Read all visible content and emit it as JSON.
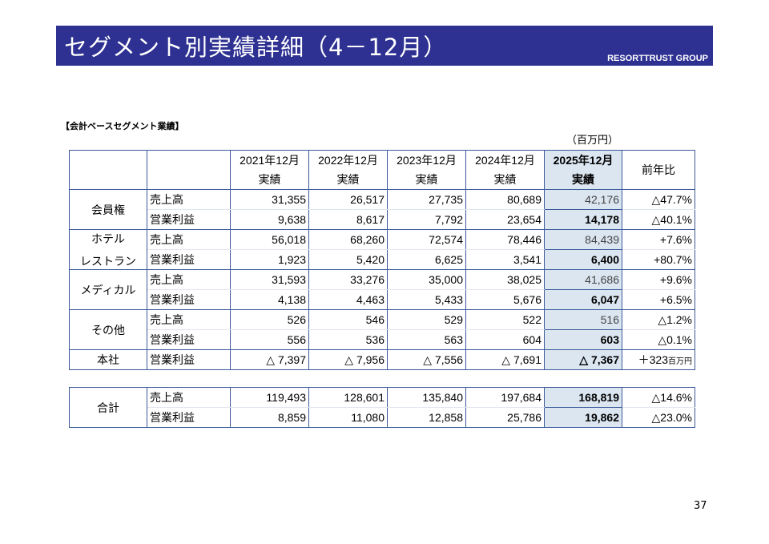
{
  "title": "セグメント別実績詳細（4－12月）",
  "brand": "RESORTTRUST GROUP",
  "section_title": "【会計ベースセグメント業績】",
  "unit": "（百万円）",
  "columns": [
    {
      "year": "2021年12月",
      "sub": "実績"
    },
    {
      "year": "2022年12月",
      "sub": "実績"
    },
    {
      "year": "2023年12月",
      "sub": "実績"
    },
    {
      "year": "2024年12月",
      "sub": "実績"
    },
    {
      "year": "2025年12月",
      "sub": "実績"
    }
  ],
  "yoy_header": "前年比",
  "segments": [
    {
      "name": "会員権",
      "rows": [
        {
          "label": "売上高",
          "values": [
            "31,355",
            "26,517",
            "27,735",
            "80,689",
            "42,176"
          ],
          "yoy": "△47.7%"
        },
        {
          "label": "営業利益",
          "values": [
            "9,638",
            "8,617",
            "7,792",
            "23,654",
            "14,178"
          ],
          "yoy": "△40.1%"
        }
      ]
    },
    {
      "name": "ホテル",
      "name2": "レストラン",
      "rows": [
        {
          "label": "売上高",
          "values": [
            "56,018",
            "68,260",
            "72,574",
            "78,446",
            "84,439"
          ],
          "yoy": "+7.6%"
        },
        {
          "label": "営業利益",
          "values": [
            "1,923",
            "5,420",
            "6,625",
            "3,541",
            "6,400"
          ],
          "yoy": "+80.7%"
        }
      ]
    },
    {
      "name": "メディカル",
      "rows": [
        {
          "label": "売上高",
          "values": [
            "31,593",
            "33,276",
            "35,000",
            "38,025",
            "41,686"
          ],
          "yoy": "+9.6%"
        },
        {
          "label": "営業利益",
          "values": [
            "4,138",
            "4,463",
            "5,433",
            "5,676",
            "6,047"
          ],
          "yoy": "+6.5%"
        }
      ]
    },
    {
      "name": "その他",
      "rows": [
        {
          "label": "売上高",
          "values": [
            "526",
            "546",
            "529",
            "522",
            "516"
          ],
          "yoy": "△1.2%"
        },
        {
          "label": "営業利益",
          "values": [
            "556",
            "536",
            "563",
            "604",
            "603"
          ],
          "yoy": "△0.1%"
        }
      ]
    },
    {
      "name": "本社",
      "rows": [
        {
          "label": "営業利益",
          "values": [
            "△ 7,397",
            "△ 7,956",
            "△ 7,556",
            "△ 7,691",
            "△ 7,367"
          ],
          "yoy": "＋323",
          "yoy_unit": "百万円"
        }
      ]
    }
  ],
  "total": {
    "name": "合計",
    "rows": [
      {
        "label": "売上高",
        "values": [
          "119,493",
          "128,601",
          "135,840",
          "197,684",
          "168,819"
        ],
        "yoy": "△14.6%"
      },
      {
        "label": "営業利益",
        "values": [
          "8,859",
          "11,080",
          "12,858",
          "25,786",
          "19,862"
        ],
        "yoy": "△23.0%"
      }
    ]
  },
  "page_number": "37"
}
